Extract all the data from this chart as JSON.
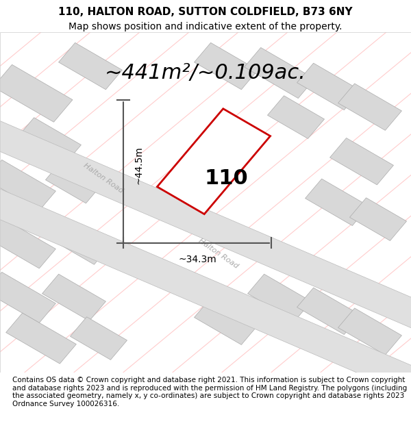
{
  "title_line1": "110, HALTON ROAD, SUTTON COLDFIELD, B73 6NY",
  "title_line2": "Map shows position and indicative extent of the property.",
  "area_text": "~441m²/~0.109ac.",
  "property_number": "110",
  "dim_height": "~44.5m",
  "dim_width": "~34.3m",
  "road_label1": "Halton Road",
  "road_label2": "Ha⁠lton Road",
  "footer_text": "Contains OS data © Crown copyright and database right 2021. This information is subject to Crown copyright and database rights 2023 and is reproduced with the permission of HM Land Registry. The polygons (including the associated geometry, namely x, y co-ordinates) are subject to Crown copyright and database rights 2023 Ordnance Survey 100026316.",
  "bg_color": "#f0f0f0",
  "map_bg": "#f5f5f5",
  "building_fill": "#d8d8d8",
  "building_edge": "#aaaaaa",
  "road_fill": "#e8e8e8",
  "road_edge": "#cccccc",
  "plot_edge": "#cc0000",
  "plot_fill": "none",
  "dim_color": "#555555",
  "road_text_color": "#aaaaaa",
  "pink_line_color": "#ffaaaa",
  "title_fontsize": 11,
  "subtitle_fontsize": 10,
  "area_fontsize": 22,
  "number_fontsize": 22,
  "dim_fontsize": 10,
  "footer_fontsize": 7.5
}
